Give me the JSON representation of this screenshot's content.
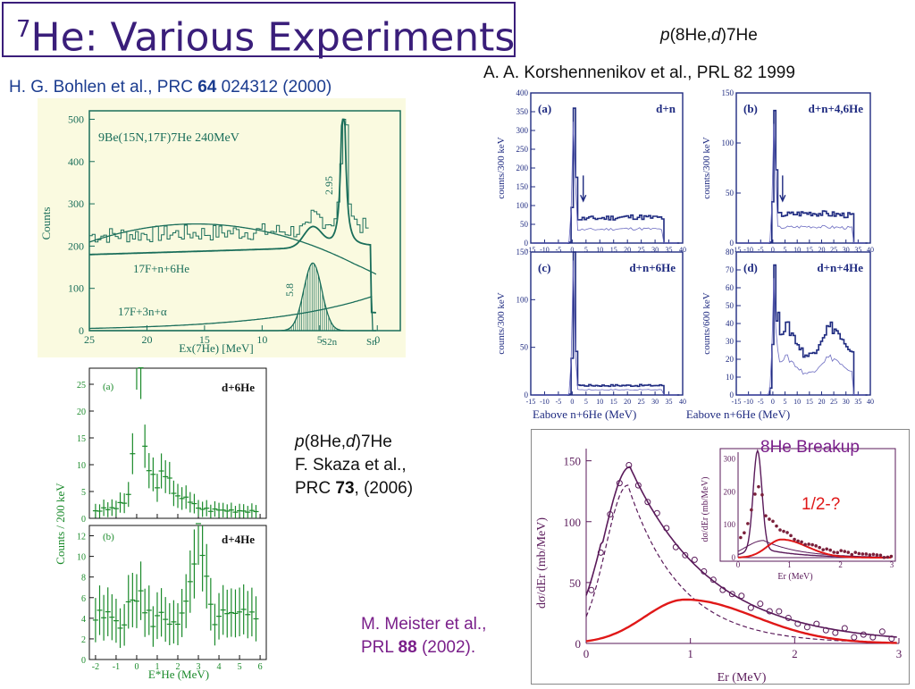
{
  "slide": {
    "title_prefix": "7",
    "title_main": "He: Various Experiments"
  },
  "bohlen": {
    "citation_pre": "H. G. Bohlen et al., PRC ",
    "citation_vol": "64",
    "citation_post": " 024312 (2000)",
    "reaction": "9Be(15N,17F)7He   240MeV",
    "y_axis_label": "Counts",
    "x_axis_label": "Ex(7He) [MeV]",
    "y_ticks": [
      "500",
      "400",
      "300",
      "200",
      "100",
      "0"
    ],
    "x_ticks": [
      "25",
      "20",
      "15",
      "10",
      "5",
      "0"
    ],
    "peak_295": "2.95",
    "peak_58": "5.8",
    "label_f_n_he6": "17F+n+6He",
    "label_f_3n_alpha": "17F+3n+α",
    "label_s2n": "S2n",
    "label_sn": "Sn"
  },
  "korsh": {
    "reaction_p": "p",
    "reaction_mid": "(8He,",
    "reaction_d": "d",
    "reaction_end": ")7He",
    "citation": "A. A. Korshennenikov et al., PRL 82 1999",
    "panels": [
      {
        "tag": "(a)",
        "label": "d+n",
        "ylabel": "counts/300 keV",
        "yticks": [
          "400",
          "350",
          "300",
          "250",
          "200",
          "150",
          "100",
          "50",
          "0"
        ]
      },
      {
        "tag": "(b)",
        "label": "d+n+4,6He",
        "ylabel": "counts/300 keV",
        "yticks": [
          "150",
          "100",
          "50",
          "0"
        ]
      },
      {
        "tag": "(c)",
        "label": "d+n+6He",
        "ylabel": "counts/300 keV",
        "yticks": [
          "150",
          "100",
          "50",
          "0"
        ]
      },
      {
        "tag": "(d)",
        "label": "d+n+4He",
        "ylabel": "counts/600 keV",
        "yticks": [
          "80",
          "70",
          "60",
          "50",
          "40",
          "30",
          "20",
          "10",
          "0"
        ]
      }
    ],
    "xticks": [
      "-15",
      "-10",
      "-5",
      "0",
      "5",
      "10",
      "15",
      "20",
      "25",
      "30",
      "35",
      "40"
    ],
    "x_axis_label": "Eabove n+6He (MeV)"
  },
  "skaza": {
    "y_axis_label": "Counts / 200 keV",
    "panel_a_tag": "(a)",
    "panel_a_label": "d+6He",
    "panel_b_tag": "(b)",
    "panel_b_label": "d+4He",
    "a_yticks": [
      "25",
      "20",
      "15",
      "10",
      "5",
      "0"
    ],
    "b_yticks": [
      "12",
      "10",
      "8",
      "6",
      "4",
      "2",
      "0"
    ],
    "xticks": [
      "-2",
      "-1",
      "0",
      "1",
      "2",
      "3",
      "4",
      "5",
      "6"
    ],
    "x_axis_label": "E*He (MeV)",
    "reaction_p": "p",
    "reaction_mid": "(8He,",
    "reaction_d": "d",
    "reaction_end": ")7He",
    "author": "F. Skaza et al.,",
    "journal_pre": "PRC ",
    "journal_vol": "73",
    "journal_post": ", (2006)"
  },
  "meister": {
    "breakup_label": "8He Breakup",
    "spin_label": "1/2-?",
    "author": "M. Meister et al.,",
    "journal_pre": "PRL ",
    "journal_vol": "88",
    "journal_post": " (2002).",
    "y_axis_label": "dσ/dEr  (mb/MeV)",
    "x_axis_label": "Er (MeV)",
    "yticks": [
      "150",
      "100",
      "50",
      "0"
    ],
    "xticks": [
      "0",
      "1",
      "2",
      "3"
    ],
    "inset_y_label": "dσ/dEr  (mb/MeV)",
    "inset_x_label": "Er (MeV)",
    "inset_yticks": [
      "300",
      "200",
      "100",
      "0"
    ],
    "inset_xticks": [
      "0",
      "1",
      "2",
      "3"
    ]
  },
  "colors": {
    "title": "#3a1e7a",
    "citation_blue": "#1b3c8f",
    "meister_purple": "#7a1f8a",
    "bohlen_bg": "#fafae0",
    "bohlen_ink": "#1a6e5a",
    "skaza_ink": "#1a8a2a",
    "korsh_ink": "#1e2a80",
    "meister_ink": "#5a1a5a",
    "fit_red": "#e01818"
  }
}
